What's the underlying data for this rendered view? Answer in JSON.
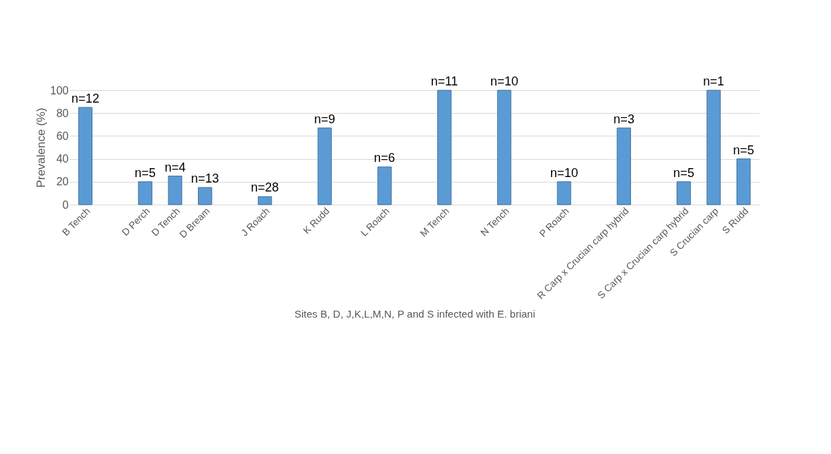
{
  "chart_data": {
    "type": "bar",
    "xlabel": "Sites B, D, J,K,L,M,N, P and S infected with E. briani",
    "ylabel": "Prevalence (%)",
    "categories": [
      "B Tench",
      null,
      "D Perch",
      "D Tench",
      "D Bream",
      null,
      "J Roach",
      null,
      "K Rudd",
      null,
      "L Roach",
      null,
      "M Tench",
      null,
      "N Tench",
      null,
      "P Roach",
      null,
      "R Carp x Crucian carp hybrid",
      null,
      "S Carp x Crucian carp hybrid",
      "S Crucian carp",
      "S Rudd"
    ],
    "values": [
      85,
      null,
      20,
      25,
      15,
      null,
      7,
      null,
      67,
      null,
      33,
      null,
      100,
      null,
      100,
      null,
      20,
      null,
      67,
      null,
      20,
      100,
      40
    ],
    "annotations": [
      {
        "text": "n=12",
        "x": "B Tench",
        "y": 85
      },
      {
        "text": "n=5",
        "x": "D Perch",
        "y": 20
      },
      {
        "text": "n=4",
        "x": "D Tench",
        "y": 25
      },
      {
        "text": "n=13",
        "x": "D Bream",
        "y": 15
      },
      {
        "text": "n=28",
        "x": "J Roach",
        "y": 7
      },
      {
        "text": "n=9",
        "x": "K Rudd",
        "y": 67
      },
      {
        "text": "n=6",
        "x": "L Roach",
        "y": 33
      },
      {
        "text": "n=11",
        "x": "M Tench",
        "y": 100
      },
      {
        "text": "n=10",
        "x": "N Tench",
        "y": 100
      },
      {
        "text": "n=10",
        "x": "P Roach",
        "y": 20
      },
      {
        "text": "n=3",
        "x": "R Carp x Crucian carp hybrid",
        "y": 67
      },
      {
        "text": "n=5",
        "x": "S Carp x Crucian carp hybrid",
        "y": 20
      },
      {
        "text": "n=1",
        "x": "S Crucian carp",
        "y": 100
      },
      {
        "text": "n=5",
        "x": "S Rudd",
        "y": 40
      }
    ],
    "color": "#5b9bd5",
    "ylim": [
      0,
      100
    ],
    "yticks": [
      0,
      20,
      40,
      60,
      80,
      100
    ],
    "grid": "y"
  }
}
